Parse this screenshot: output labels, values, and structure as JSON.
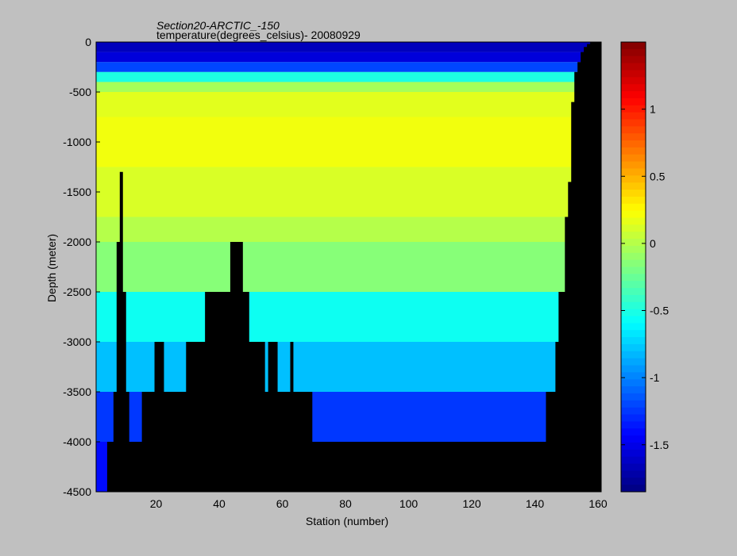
{
  "chart_data": {
    "type": "heatmap",
    "title": "Section20-ARCTIC_-150",
    "subtitle": "temperature(degrees_celsius)- 20080929",
    "xlabel": "Station (number)",
    "ylabel": "Depth (meter)",
    "xlim": [
      1,
      161
    ],
    "ylim": [
      -4500,
      0
    ],
    "xticks": [
      20,
      40,
      60,
      80,
      100,
      120,
      140,
      160
    ],
    "yticks": [
      0,
      -500,
      -1000,
      -1500,
      -2000,
      -2500,
      -3000,
      -3500,
      -4000,
      -4500
    ],
    "xtick_labels": [
      "20",
      "40",
      "60",
      "80",
      "100",
      "120",
      "140",
      "160"
    ],
    "ytick_labels": [
      "0",
      "-500",
      "-1000",
      "-1500",
      "-2000",
      "-2500",
      "-3000",
      "-3500",
      "-4000",
      "-4500"
    ],
    "colorbar": {
      "range": [
        -1.85,
        1.5
      ],
      "ticks": [
        1,
        0.5,
        0,
        -0.5,
        -1,
        -1.5
      ],
      "tick_labels": [
        "1",
        "0.5",
        "0",
        "-0.5",
        "-1",
        "-1.5"
      ],
      "colormap": "jet"
    },
    "layers": [
      {
        "top": 0,
        "bottom": -100,
        "temp": -1.65
      },
      {
        "top": -100,
        "bottom": -200,
        "temp": -1.55
      },
      {
        "top": -200,
        "bottom": -300,
        "temp": -1.2
      },
      {
        "top": -300,
        "bottom": -400,
        "temp": -0.5
      },
      {
        "top": -400,
        "bottom": -500,
        "temp": -0.05
      },
      {
        "top": -500,
        "bottom": -750,
        "temp": 0.15
      },
      {
        "top": -750,
        "bottom": -1250,
        "temp": 0.2
      },
      {
        "top": -1250,
        "bottom": -1750,
        "temp": 0.12
      },
      {
        "top": -1750,
        "bottom": -2000,
        "temp": 0.0
      },
      {
        "top": -2000,
        "bottom": -2500,
        "temp": -0.15
      },
      {
        "top": -2500,
        "bottom": -3000,
        "temp": -0.55
      },
      {
        "top": -3000,
        "bottom": -3500,
        "temp": -0.8
      },
      {
        "top": -3500,
        "bottom": -4000,
        "temp": -1.25
      },
      {
        "top": -4000,
        "bottom": -4500,
        "temp": -1.4
      }
    ],
    "bottom_depth": [
      [
        1,
        -4500
      ],
      [
        2,
        -4500
      ],
      [
        3,
        -4500
      ],
      [
        4,
        -4500
      ],
      [
        5,
        -4000
      ],
      [
        6,
        -4000
      ],
      [
        7,
        -3500
      ],
      [
        8,
        -2000
      ],
      [
        9,
        -1300
      ],
      [
        10,
        -2500
      ],
      [
        11,
        -3500
      ],
      [
        12,
        -4000
      ],
      [
        13,
        -4000
      ],
      [
        14,
        -4000
      ],
      [
        15,
        -4000
      ],
      [
        16,
        -3500
      ],
      [
        17,
        -3500
      ],
      [
        18,
        -3500
      ],
      [
        19,
        -3500
      ],
      [
        20,
        -3000
      ],
      [
        21,
        -3000
      ],
      [
        22,
        -3000
      ],
      [
        23,
        -3500
      ],
      [
        24,
        -3500
      ],
      [
        25,
        -3500
      ],
      [
        26,
        -3500
      ],
      [
        27,
        -3500
      ],
      [
        28,
        -3500
      ],
      [
        29,
        -3500
      ],
      [
        30,
        -3000
      ],
      [
        31,
        -3000
      ],
      [
        32,
        -3000
      ],
      [
        33,
        -3000
      ],
      [
        34,
        -3000
      ],
      [
        35,
        -3000
      ],
      [
        36,
        -2500
      ],
      [
        37,
        -2500
      ],
      [
        38,
        -2500
      ],
      [
        39,
        -2500
      ],
      [
        40,
        -2500
      ],
      [
        41,
        -2500
      ],
      [
        42,
        -2500
      ],
      [
        43,
        -2500
      ],
      [
        44,
        -2000
      ],
      [
        45,
        -2000
      ],
      [
        46,
        -2000
      ],
      [
        47,
        -2000
      ],
      [
        48,
        -2500
      ],
      [
        49,
        -2500
      ],
      [
        50,
        -3000
      ],
      [
        51,
        -3000
      ],
      [
        52,
        -3000
      ],
      [
        53,
        -3000
      ],
      [
        54,
        -3000
      ],
      [
        55,
        -3500
      ],
      [
        56,
        -3000
      ],
      [
        57,
        -3000
      ],
      [
        58,
        -3000
      ],
      [
        59,
        -3500
      ],
      [
        60,
        -3500
      ],
      [
        61,
        -3500
      ],
      [
        62,
        -3500
      ],
      [
        63,
        -3000
      ],
      [
        64,
        -3500
      ],
      [
        65,
        -3500
      ],
      [
        66,
        -3500
      ],
      [
        67,
        -3500
      ],
      [
        68,
        -3500
      ],
      [
        69,
        -3500
      ],
      [
        70,
        -4000
      ],
      [
        143,
        -4000
      ],
      [
        144,
        -3500
      ],
      [
        145,
        -3500
      ],
      [
        146,
        -3500
      ],
      [
        147,
        -3000
      ],
      [
        148,
        -2500
      ],
      [
        149,
        -2500
      ],
      [
        150,
        -1750
      ],
      [
        151,
        -1400
      ],
      [
        152,
        -600
      ],
      [
        153,
        -300
      ],
      [
        154,
        -200
      ],
      [
        155,
        -100
      ],
      [
        156,
        -50
      ],
      [
        157,
        -20
      ],
      [
        158,
        0
      ],
      [
        159,
        0
      ],
      [
        160,
        0
      ],
      [
        161,
        0
      ]
    ]
  }
}
